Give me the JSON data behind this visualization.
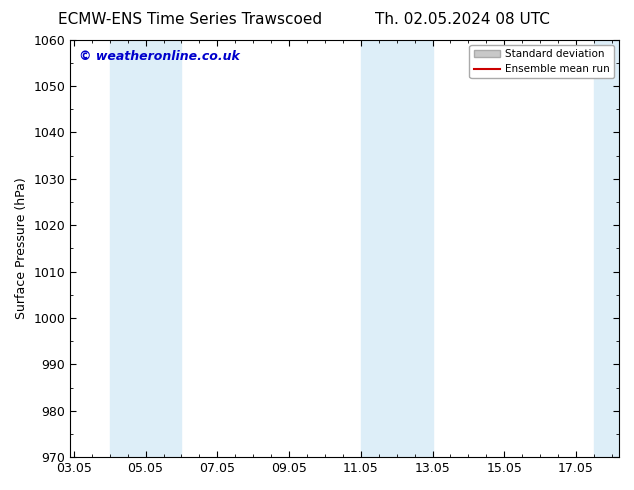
{
  "title_left": "ECMW-ENS Time Series Trawscoed",
  "title_right": "Th. 02.05.2024 08 UTC",
  "ylabel": "Surface Pressure (hPa)",
  "ylim": [
    970,
    1060
  ],
  "yticks": [
    970,
    980,
    990,
    1000,
    1010,
    1020,
    1030,
    1040,
    1050,
    1060
  ],
  "xtick_labels": [
    "03.05",
    "05.05",
    "07.05",
    "09.05",
    "11.05",
    "13.05",
    "15.05",
    "17.05"
  ],
  "xtick_positions": [
    0,
    2,
    4,
    6,
    8,
    10,
    12,
    14
  ],
  "x_min": -0.1,
  "x_max": 15.2,
  "shaded_bands": [
    {
      "x_start": 1.0,
      "x_end": 3.0,
      "color": "#ddeef8"
    },
    {
      "x_start": 8.0,
      "x_end": 10.0,
      "color": "#ddeef8"
    },
    {
      "x_start": 14.5,
      "x_end": 15.2,
      "color": "#ddeef8"
    }
  ],
  "watermark_text": "© weatheronline.co.uk",
  "watermark_color": "#0000cc",
  "legend_std_color": "#c8c8c8",
  "legend_mean_color": "#cc0000",
  "background_color": "#ffffff",
  "title_fontsize": 11,
  "ylabel_fontsize": 9,
  "tick_fontsize": 9,
  "watermark_fontsize": 9
}
